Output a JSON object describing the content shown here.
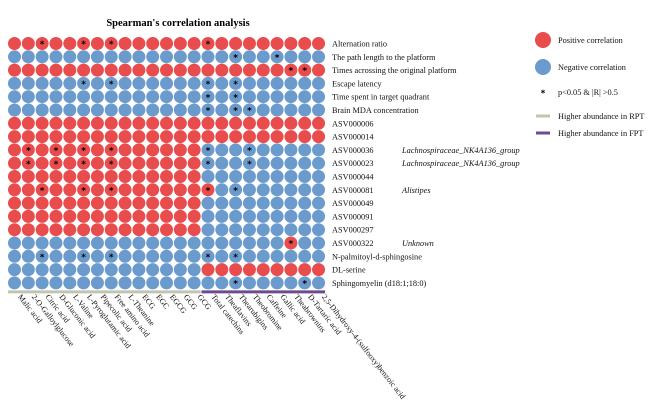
{
  "colors": {
    "positive": "#e84c4c",
    "negative": "#6b9bcd",
    "highlight_text": "#e8322e",
    "rpt_bar": "#bfc5b0",
    "fpt_bar": "#6e4a8e"
  },
  "chart_data": {
    "type": "heatmap",
    "title": "Spearman's correlation analysis",
    "rows": [
      {
        "label": "Alternation ratio",
        "tag": "",
        "highlight": false
      },
      {
        "label": "The path length to the platform",
        "tag": "",
        "highlight": false
      },
      {
        "label": "Times acrossing the original platform",
        "tag": "",
        "highlight": false
      },
      {
        "label": "Escape latency",
        "tag": "",
        "highlight": false
      },
      {
        "label": "Time spent in target quadrant",
        "tag": "",
        "highlight": false
      },
      {
        "label": "Brain MDA concentration",
        "tag": "",
        "highlight": false
      },
      {
        "label": "ASV000006",
        "tag": "",
        "highlight": false
      },
      {
        "label": "ASV000014",
        "tag": "",
        "highlight": false
      },
      {
        "label": "ASV000036",
        "tag": "Lachnospiraceae_NK4A136_group",
        "highlight": true
      },
      {
        "label": "ASV000023",
        "tag": "Lachnospiraceae_NK4A136_group",
        "highlight": true
      },
      {
        "label": "ASV000044",
        "tag": "",
        "highlight": false
      },
      {
        "label": "ASV000081",
        "tag": "Alistipes",
        "highlight": true
      },
      {
        "label": "ASV000049",
        "tag": "",
        "highlight": false
      },
      {
        "label": "ASV000091",
        "tag": "",
        "highlight": false
      },
      {
        "label": "ASV000297",
        "tag": "",
        "highlight": false
      },
      {
        "label": "ASV000322",
        "tag": "Unknown",
        "highlight": true
      },
      {
        "label": "N-palmitoyl-d-sphingosine",
        "tag": "",
        "highlight": false
      },
      {
        "label": "DL-serine",
        "tag": "",
        "highlight": false
      },
      {
        "label": "Sphingomyelin (d18:1;18:0)",
        "tag": "",
        "highlight": false
      }
    ],
    "columns": [
      {
        "label": "Malic acid",
        "highlight": false
      },
      {
        "label": "2-O-Galloylglucose",
        "highlight": true
      },
      {
        "label": "Citric acid",
        "highlight": false
      },
      {
        "label": "D-Gluconic acid",
        "highlight": false
      },
      {
        "label": "L-Valine",
        "highlight": true
      },
      {
        "label": "L-Pyroglutamic acid",
        "highlight": false
      },
      {
        "label": "Pipecolic acid",
        "highlight": true
      },
      {
        "label": "Free amino acid",
        "highlight": false
      },
      {
        "label": "L-Theanine",
        "highlight": false
      },
      {
        "label": "ECG",
        "highlight": false
      },
      {
        "label": "EGC",
        "highlight": false
      },
      {
        "label": "EGCG",
        "highlight": false
      },
      {
        "label": "GCG",
        "highlight": false
      },
      {
        "label": "GCG",
        "highlight": false
      },
      {
        "label": "Total catechins",
        "highlight": true
      },
      {
        "label": "Theaflavins",
        "highlight": true
      },
      {
        "label": "Thearubigins",
        "highlight": true
      },
      {
        "label": "Theobromine",
        "highlight": true
      },
      {
        "label": "Caffeine",
        "highlight": true
      },
      {
        "label": "Gallic acid",
        "highlight": true
      },
      {
        "label": "Theabrownins",
        "highlight": true
      },
      {
        "label": "D-Tartaric acid",
        "highlight": false
      },
      {
        "label": "2,5-Dihydroxy-4-(sulfooxy)benzoic acid",
        "highlight": false
      }
    ],
    "column_groups": [
      {
        "name": "Higher abundance in RPT",
        "start": 0,
        "end": 13
      },
      {
        "name": "Higher abundance in FPT",
        "start": 14,
        "end": 22
      }
    ],
    "matrix": [
      "PPPPPPPPPPPPPPPPPPPPPPP",
      "NNNNNNNNNNNNNNNNNNNNNNN",
      "PPPPPPPPPPPPPPPPPPPPPPP",
      "NNNNNNNNNNNNNNNNNNNNNNN",
      "NNNNNNNNNNNNNNNNNNNNNNN",
      "NNNNNNNNNNNNNNNNNNNNNNN",
      "PPPPPPPPPPPPPPPPPPPPPPP",
      "PPPPPPPPPPPPPPPPPPPPPPP",
      "PPPPPPPPPPPPPPNNNNNNNNN",
      "PPPPPPPPPPPPPPNNNNNNNNN",
      "PPPPPPPPPPPPPPNNNNNNNNN",
      "PPPPPPPPPPPPPPPNNNNNNNN",
      "PPPPPPPPPPPPPPNNNNNNNNN",
      "PPPPPPPPPPPPPPNNNNNNNNN",
      "PPPPPPPPPPPPPPNNNNNNNNN",
      "NNNNNNNNNNNNNNNNNNNNPNN",
      "NNNNNNNNNNNNNNNNNNNNNNN",
      "NNNNNNNNNNNNNNPPPPPPPPP",
      "NNNNNNNNNNNNNNNNNNNNNNN"
    ],
    "significant": [
      [
        0,
        2
      ],
      [
        0,
        5
      ],
      [
        0,
        7
      ],
      [
        0,
        14
      ],
      [
        1,
        16
      ],
      [
        1,
        19
      ],
      [
        2,
        20
      ],
      [
        2,
        21
      ],
      [
        3,
        5
      ],
      [
        3,
        7
      ],
      [
        3,
        14
      ],
      [
        3,
        16
      ],
      [
        4,
        14
      ],
      [
        4,
        16
      ],
      [
        5,
        14
      ],
      [
        5,
        16
      ],
      [
        5,
        17
      ],
      [
        8,
        1
      ],
      [
        8,
        3
      ],
      [
        8,
        5
      ],
      [
        8,
        7
      ],
      [
        8,
        14
      ],
      [
        8,
        17
      ],
      [
        9,
        1
      ],
      [
        9,
        3
      ],
      [
        9,
        5
      ],
      [
        9,
        7
      ],
      [
        9,
        14
      ],
      [
        9,
        17
      ],
      [
        11,
        2
      ],
      [
        11,
        5
      ],
      [
        11,
        7
      ],
      [
        11,
        14
      ],
      [
        11,
        16
      ],
      [
        15,
        20
      ],
      [
        16,
        2
      ],
      [
        16,
        5
      ],
      [
        16,
        7
      ],
      [
        16,
        14
      ],
      [
        16,
        16
      ],
      [
        18,
        16
      ],
      [
        18,
        21
      ]
    ],
    "legend": [
      {
        "kind": "circle",
        "color_key": "positive",
        "label": "Positive correlation"
      },
      {
        "kind": "circle",
        "color_key": "negative",
        "label": "Negative correlation"
      },
      {
        "kind": "star",
        "symbol": "*",
        "label": "p<0.05 & |R| >0.5"
      },
      {
        "kind": "bar",
        "color_key": "rpt_bar",
        "label": "Higher abundance in RPT"
      },
      {
        "kind": "bar",
        "color_key": "fpt_bar",
        "label": "Higher abundance in FPT"
      }
    ]
  }
}
